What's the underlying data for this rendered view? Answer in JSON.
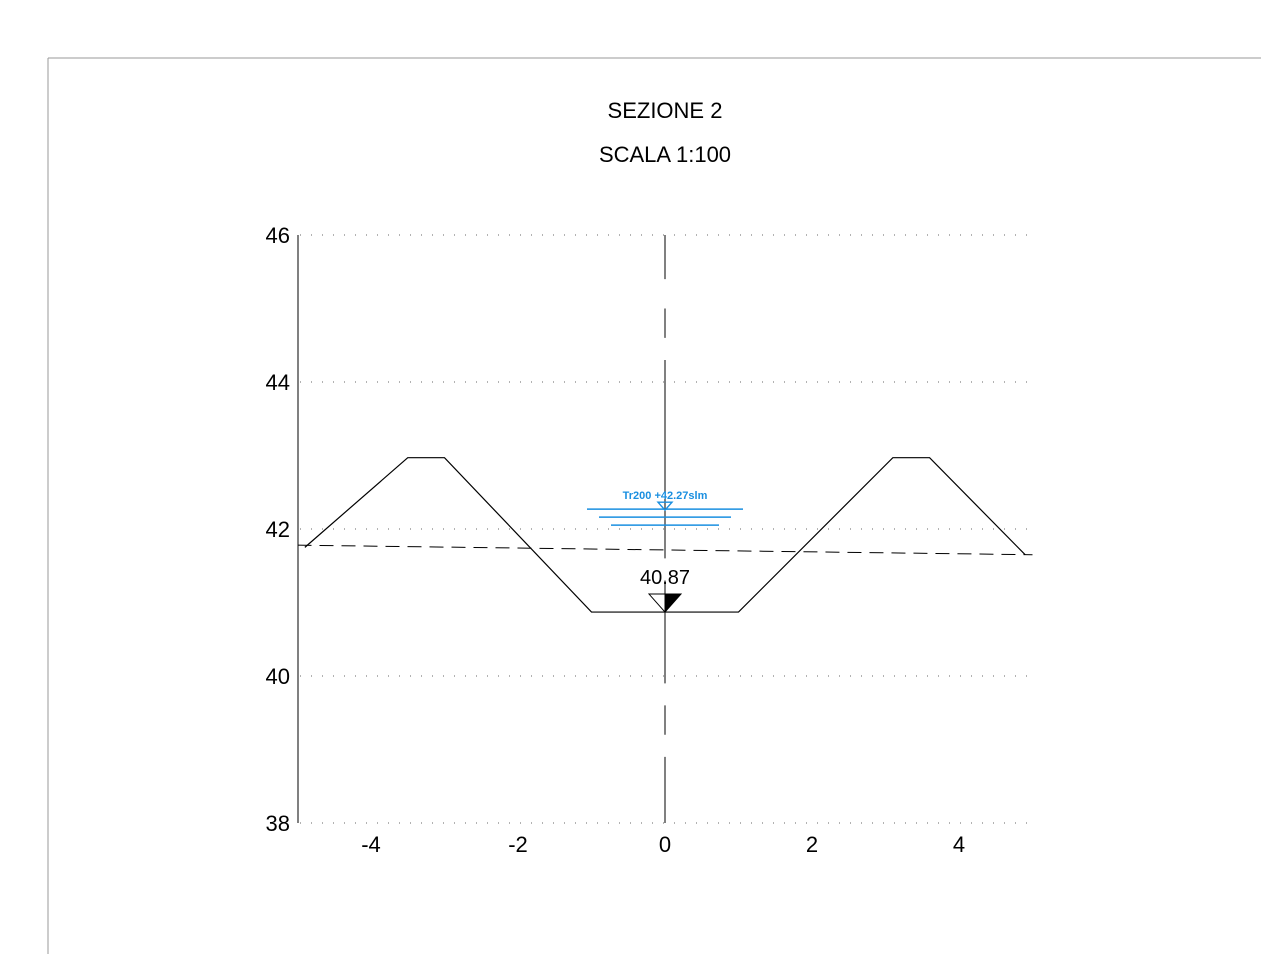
{
  "title": {
    "line1": "SEZIONE 2",
    "line2": "SCALA 1:100"
  },
  "chart_data": {
    "type": "cross-section",
    "xlim": [
      -5,
      5
    ],
    "ylim": [
      38,
      46
    ],
    "x_ticks": [
      "-4",
      "-2",
      "0",
      "2",
      "4"
    ],
    "x_tick_values": [
      -4,
      -2,
      0,
      2,
      4
    ],
    "y_ticks": [
      "46",
      "44",
      "42",
      "40",
      "38"
    ],
    "y_tick_values": [
      46,
      44,
      42,
      40,
      38
    ],
    "grid": "dotted horizontal at 46, 44, 42, 40",
    "ground_profile": [
      [
        -4.9,
        41.75
      ],
      [
        -3.5,
        42.97
      ],
      [
        -3.0,
        42.97
      ],
      [
        -1.0,
        40.87
      ],
      [
        1.0,
        40.87
      ],
      [
        3.1,
        42.97
      ],
      [
        3.6,
        42.97
      ],
      [
        4.9,
        41.65
      ]
    ],
    "reference_line_dashed": [
      [
        -5.0,
        41.78
      ],
      [
        5.0,
        41.65
      ]
    ],
    "thalweg": {
      "x": 0,
      "y": 40.87,
      "label": "40.87"
    },
    "water_level": {
      "x": 0,
      "y": 42.27,
      "label": "Tr200  +42.27slm",
      "color": "#1a8fe0"
    }
  }
}
